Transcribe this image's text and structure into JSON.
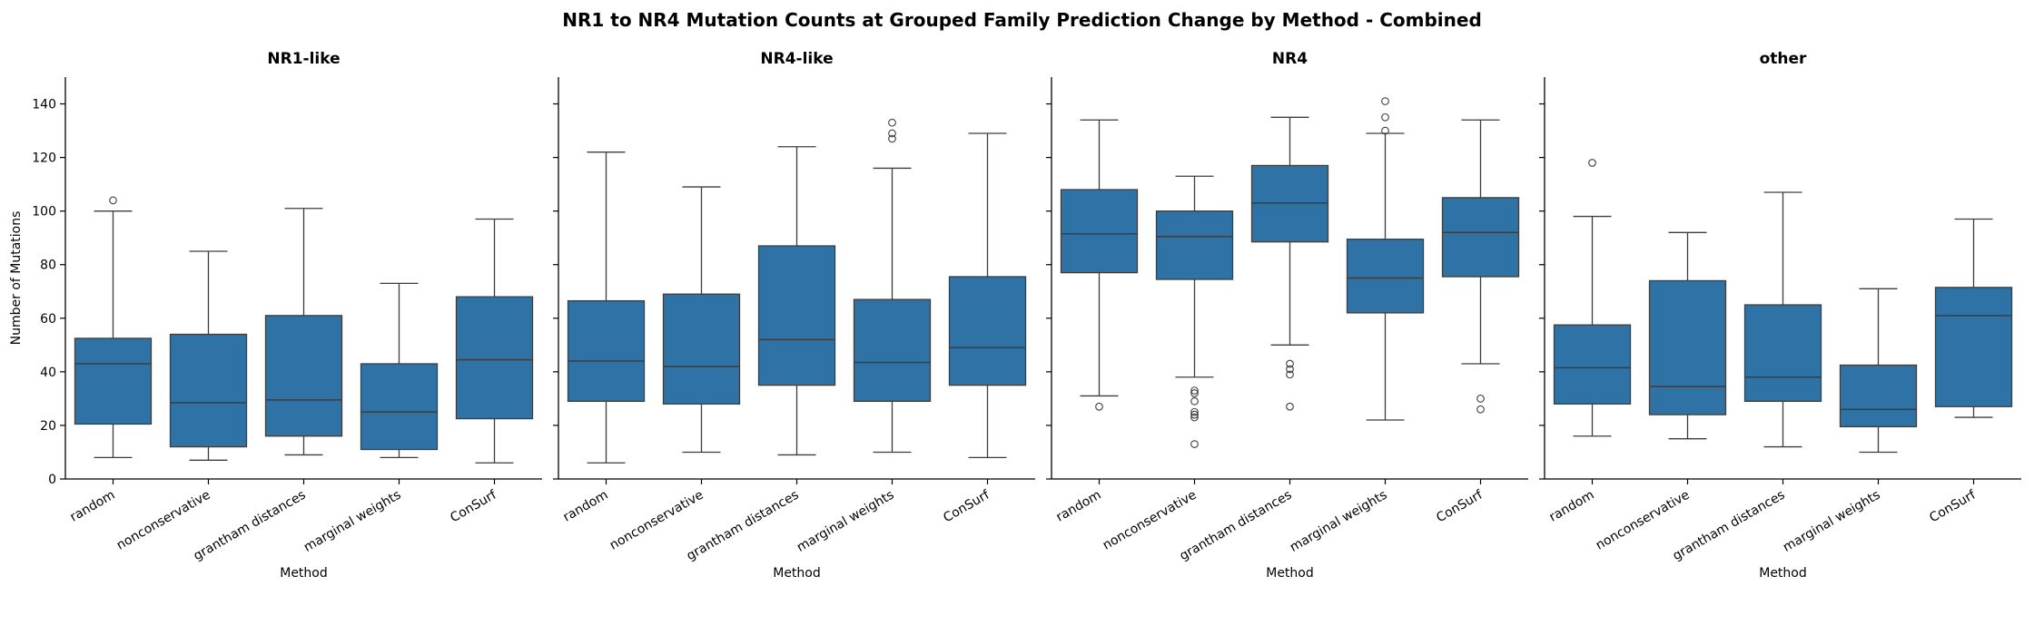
{
  "figure": {
    "title": "NR1 to NR4 Mutation Counts at Grouped Family Prediction Change by Method - Combined"
  },
  "colors": {
    "box": "#2e72a6",
    "line": "#3d3d3d",
    "axis": "#000000"
  },
  "chart_data": [
    {
      "type": "box",
      "title": "NR1-like",
      "xlabel": "Method",
      "ylabel": "Number of Mutations",
      "ylim": [
        0,
        150
      ],
      "yticks": [
        0,
        20,
        40,
        60,
        80,
        100,
        120,
        140
      ],
      "categories": [
        "random",
        "nonconservative",
        "grantham distances",
        "marginal weights",
        "ConSurf"
      ],
      "boxes": [
        {
          "whislo": 8,
          "q1": 20.5,
          "med": 43,
          "q3": 52.5,
          "whishi": 100,
          "fliers": [
            104
          ]
        },
        {
          "whislo": 7,
          "q1": 12,
          "med": 28.5,
          "q3": 54,
          "whishi": 85,
          "fliers": []
        },
        {
          "whislo": 9,
          "q1": 16,
          "med": 29.5,
          "q3": 61,
          "whishi": 101,
          "fliers": []
        },
        {
          "whislo": 8,
          "q1": 11,
          "med": 25,
          "q3": 43,
          "whishi": 73,
          "fliers": []
        },
        {
          "whislo": 6,
          "q1": 22.5,
          "med": 44.5,
          "q3": 68,
          "whishi": 97,
          "fliers": []
        }
      ]
    },
    {
      "type": "box",
      "title": "NR4-like",
      "xlabel": "Method",
      "ylabel": "",
      "ylim": [
        0,
        150
      ],
      "yticks": [
        0,
        20,
        40,
        60,
        80,
        100,
        120,
        140
      ],
      "categories": [
        "random",
        "nonconservative",
        "grantham distances",
        "marginal weights",
        "ConSurf"
      ],
      "boxes": [
        {
          "whislo": 6,
          "q1": 29,
          "med": 44,
          "q3": 66.5,
          "whishi": 122,
          "fliers": []
        },
        {
          "whislo": 10,
          "q1": 28,
          "med": 42,
          "q3": 69,
          "whishi": 109,
          "fliers": []
        },
        {
          "whislo": 9,
          "q1": 35,
          "med": 52,
          "q3": 87,
          "whishi": 124,
          "fliers": []
        },
        {
          "whislo": 10,
          "q1": 29,
          "med": 43.5,
          "q3": 67,
          "whishi": 116,
          "fliers": [
            127,
            129,
            133
          ]
        },
        {
          "whislo": 8,
          "q1": 35,
          "med": 49,
          "q3": 75.5,
          "whishi": 129,
          "fliers": []
        }
      ]
    },
    {
      "type": "box",
      "title": "NR4",
      "xlabel": "Method",
      "ylabel": "",
      "ylim": [
        0,
        150
      ],
      "yticks": [
        0,
        20,
        40,
        60,
        80,
        100,
        120,
        140
      ],
      "categories": [
        "random",
        "nonconservative",
        "grantham distances",
        "marginal weights",
        "ConSurf"
      ],
      "boxes": [
        {
          "whislo": 31,
          "q1": 77,
          "med": 91.5,
          "q3": 108,
          "whishi": 134,
          "fliers": [
            27
          ]
        },
        {
          "whislo": 38,
          "q1": 74.5,
          "med": 90.5,
          "q3": 100,
          "whishi": 113,
          "fliers": [
            33,
            32,
            29,
            25,
            24,
            23,
            13
          ]
        },
        {
          "whislo": 50,
          "q1": 88.5,
          "med": 103,
          "q3": 117,
          "whishi": 135,
          "fliers": [
            43,
            41,
            39,
            27
          ]
        },
        {
          "whislo": 22,
          "q1": 62,
          "med": 75,
          "q3": 89.5,
          "whishi": 129,
          "fliers": [
            130,
            135,
            141
          ]
        },
        {
          "whislo": 43,
          "q1": 75.5,
          "med": 92,
          "q3": 105,
          "whishi": 134,
          "fliers": [
            30,
            26
          ]
        }
      ]
    },
    {
      "type": "box",
      "title": "other",
      "xlabel": "Method",
      "ylabel": "",
      "ylim": [
        0,
        150
      ],
      "yticks": [
        0,
        20,
        40,
        60,
        80,
        100,
        120,
        140
      ],
      "categories": [
        "random",
        "nonconservative",
        "grantham distances",
        "marginal weights",
        "ConSurf"
      ],
      "boxes": [
        {
          "whislo": 16,
          "q1": 28,
          "med": 41.5,
          "q3": 57.5,
          "whishi": 98,
          "fliers": [
            118
          ]
        },
        {
          "whislo": 15,
          "q1": 24,
          "med": 34.5,
          "q3": 74,
          "whishi": 92,
          "fliers": []
        },
        {
          "whislo": 12,
          "q1": 29,
          "med": 38,
          "q3": 65,
          "whishi": 107,
          "fliers": []
        },
        {
          "whislo": 10,
          "q1": 19.5,
          "med": 26,
          "q3": 42.5,
          "whishi": 71,
          "fliers": []
        },
        {
          "whislo": 23,
          "q1": 27,
          "med": 61,
          "q3": 71.5,
          "whishi": 97,
          "fliers": []
        }
      ]
    }
  ]
}
